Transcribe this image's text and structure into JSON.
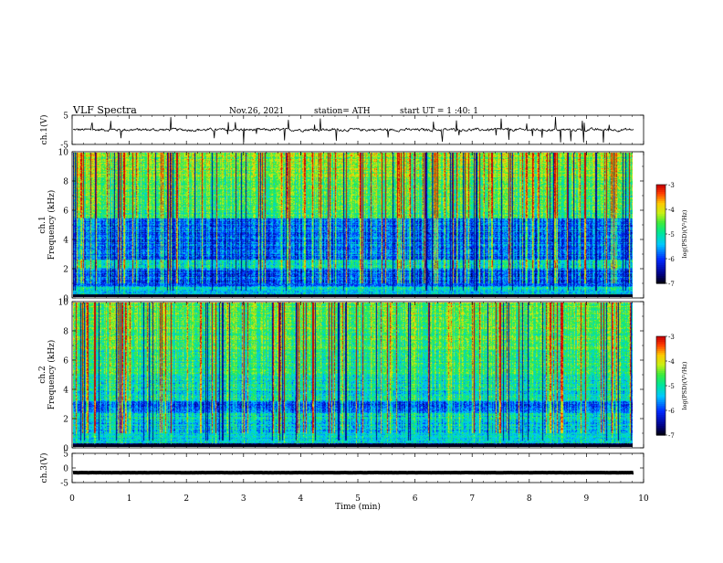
{
  "header": {
    "title": "VLF Spectra",
    "date": "Nov.26, 2021",
    "station": "station= ATH",
    "start_ut": "start UT =  1 :40: 1"
  },
  "chart_data": [
    {
      "type": "line",
      "panel": "waveform-ch1",
      "ylabel": "ch.1(V)",
      "ylim": [
        -5,
        5
      ],
      "yticks": [
        "5",
        "-5"
      ],
      "xlim": [
        0,
        10
      ],
      "x_end": 9.83,
      "series": [
        {
          "values_description_level": 0.0,
          "noise_amplitude": 0.9
        }
      ]
    },
    {
      "type": "heatmap",
      "panel": "spectrogram-ch1",
      "ylabel_line1": "ch.1",
      "ylabel_line2": "Frequency (kHz)",
      "ylim": [
        0,
        10
      ],
      "yticks": [
        "0",
        "2",
        "4",
        "6",
        "8",
        "10"
      ],
      "xlim": [
        0,
        10
      ],
      "x_end": 9.83,
      "colorbar": {
        "label": "log(PSD)(V²/Hz)",
        "range": [
          -7,
          -3
        ],
        "ticks": [
          "-3",
          "-4",
          "-5",
          "-6",
          "-7"
        ]
      }
    },
    {
      "type": "heatmap",
      "panel": "spectrogram-ch2",
      "ylabel_line1": "ch.2",
      "ylabel_line2": "Frequency (kHz)",
      "ylim": [
        0,
        10
      ],
      "yticks": [
        "0",
        "2",
        "4",
        "6",
        "8",
        "10"
      ],
      "xlim": [
        0,
        10
      ],
      "x_end": 9.83,
      "colorbar": {
        "label": "log(PSD)(V²/Hz)",
        "range": [
          -7,
          -3
        ],
        "ticks": [
          "-3",
          "-4",
          "-5",
          "-6",
          "-7"
        ]
      }
    },
    {
      "type": "line",
      "panel": "waveform-ch3",
      "ylabel": "ch.3(V)",
      "ylim": [
        -5,
        5
      ],
      "yticks": [
        "5",
        "0",
        "-5"
      ],
      "xlim": [
        0,
        10
      ],
      "x_end": 9.83,
      "series": [
        {
          "values_description_level": -1.6,
          "noise_amplitude": 0.05
        }
      ]
    }
  ],
  "xaxis": {
    "label": "Time (min)",
    "ticks": [
      "0",
      "1",
      "2",
      "3",
      "4",
      "5",
      "6",
      "7",
      "8",
      "9",
      "10"
    ]
  }
}
